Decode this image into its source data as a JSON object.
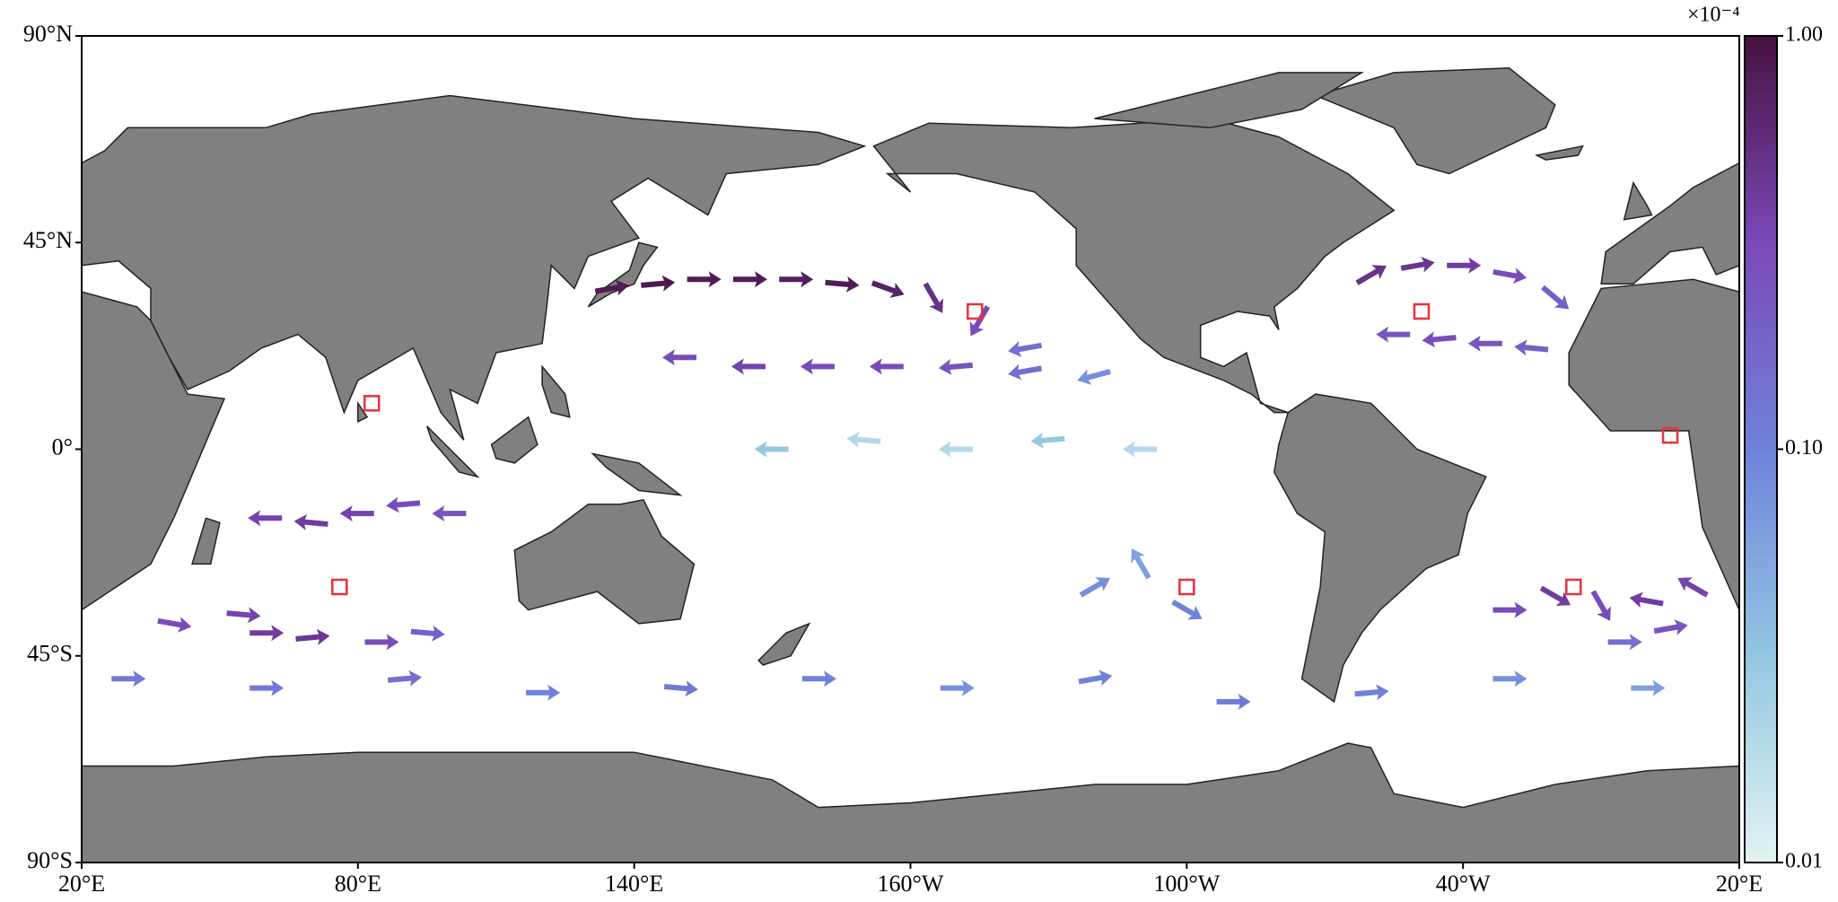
{
  "chart_data": {
    "type": "vector_map",
    "xlim": [
      20,
      380
    ],
    "ylim": [
      -90,
      90
    ],
    "xticks": [
      {
        "value": 20,
        "label": "20°E"
      },
      {
        "value": 80,
        "label": "80°E"
      },
      {
        "value": 140,
        "label": "140°E"
      },
      {
        "value": 200,
        "label": "160°W"
      },
      {
        "value": 260,
        "label": "100°W"
      },
      {
        "value": 320,
        "label": "40°W"
      },
      {
        "value": 380,
        "label": "20°E"
      }
    ],
    "yticks": [
      {
        "value": -90,
        "label": "90°S"
      },
      {
        "value": -45,
        "label": "45°S"
      },
      {
        "value": 0,
        "label": "0°"
      },
      {
        "value": 45,
        "label": "45°N"
      },
      {
        "value": 90,
        "label": "90°N"
      }
    ],
    "colorbar": {
      "label": "×10⁻⁴",
      "scale": "log",
      "lim": [
        0.01,
        1.0
      ],
      "ticks": [
        {
          "value": 0.01,
          "label": "0.01"
        },
        {
          "value": 0.1,
          "label": "0.10"
        },
        {
          "value": 1.0,
          "label": "1.00"
        }
      ],
      "colors": [
        "#e2f3f2",
        "#93c6e0",
        "#6f82db",
        "#7a48b8",
        "#46123f"
      ]
    },
    "vectors": {
      "lon": [
        135,
        145,
        155,
        165,
        175,
        185,
        195,
        205,
        215,
        225,
        150,
        165,
        180,
        195,
        210,
        225,
        240,
        170,
        190,
        210,
        230,
        250,
        -60,
        -50,
        -40,
        -30,
        -20,
        -55,
        -45,
        -35,
        -25,
        60,
        70,
        80,
        90,
        100,
        60,
        70,
        85,
        95,
        40,
        55,
        -20,
        -10,
        0,
        10,
        -30,
        -5,
        5,
        -120,
        -110,
        -100,
        30,
        60,
        90,
        120,
        150,
        180,
        -150,
        -120,
        -90,
        -60,
        -30,
        0
      ],
      "lat": [
        35,
        36,
        37,
        37,
        37,
        36,
        35,
        33,
        28,
        22,
        20,
        18,
        18,
        18,
        18,
        17,
        16,
        0,
        2,
        0,
        2,
        0,
        38,
        40,
        40,
        38,
        33,
        25,
        24,
        23,
        22,
        -15,
        -16,
        -14,
        -12,
        -14,
        -40,
        -41,
        -42,
        -40,
        -38,
        -36,
        -32,
        -34,
        -33,
        -30,
        -35,
        -42,
        -39,
        -30,
        -25,
        -35,
        -50,
        -52,
        -50,
        -53,
        -52,
        -50,
        -52,
        -50,
        -55,
        -53,
        -50,
        -52
      ],
      "direction": [
        10,
        5,
        0,
        0,
        0,
        -5,
        -20,
        -60,
        -120,
        -170,
        180,
        180,
        180,
        180,
        185,
        190,
        195,
        180,
        175,
        180,
        185,
        180,
        30,
        10,
        0,
        -10,
        -40,
        180,
        185,
        180,
        175,
        180,
        175,
        180,
        185,
        180,
        0,
        5,
        0,
        -5,
        -10,
        -5,
        -30,
        -60,
        170,
        150,
        0,
        0,
        10,
        30,
        120,
        -30,
        0,
        0,
        5,
        0,
        -5,
        0,
        0,
        10,
        0,
        5,
        0,
        0
      ],
      "magnitude": [
        0.8,
        0.85,
        0.8,
        0.8,
        0.75,
        0.8,
        0.7,
        0.5,
        0.3,
        0.15,
        0.3,
        0.35,
        0.3,
        0.3,
        0.25,
        0.15,
        0.08,
        0.03,
        0.02,
        0.02,
        0.03,
        0.02,
        0.5,
        0.45,
        0.4,
        0.3,
        0.2,
        0.25,
        0.3,
        0.25,
        0.2,
        0.35,
        0.4,
        0.35,
        0.3,
        0.25,
        0.4,
        0.45,
        0.3,
        0.2,
        0.3,
        0.35,
        0.4,
        0.3,
        0.4,
        0.35,
        0.3,
        0.15,
        0.25,
        0.08,
        0.06,
        0.1,
        0.12,
        0.12,
        0.15,
        0.1,
        0.12,
        0.1,
        0.08,
        0.1,
        0.12,
        0.1,
        0.08,
        0.06
      ]
    },
    "markers": {
      "lon": [
        83,
        76,
        -146,
        -100,
        -49,
        -16,
        5
      ],
      "lat": [
        10,
        -30,
        30,
        -30,
        30,
        -30,
        3
      ]
    }
  }
}
